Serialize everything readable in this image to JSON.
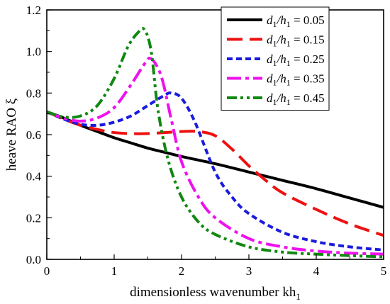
{
  "chart_data": {
    "type": "line",
    "xlabel": "dimensionless wavenumber kh",
    "xlabel_sub": "1",
    "ylabel": "heave RAO ξ",
    "xlim": [
      0,
      5
    ],
    "ylim": [
      0,
      1.2
    ],
    "xticks": [
      "0",
      "1",
      "2",
      "3",
      "4",
      "5"
    ],
    "yticks": [
      "0.0",
      "0.2",
      "0.4",
      "0.6",
      "0.8",
      "1.0",
      "1.2"
    ],
    "grid": false,
    "legend_position": "top-right",
    "series": [
      {
        "legend_ratio": "d",
        "legend_value": "= 0.05",
        "color": "#000000",
        "dash": "solid",
        "x": [
          0,
          0.25,
          0.5,
          0.75,
          1.0,
          1.25,
          1.5,
          1.75,
          2.0,
          2.5,
          3.0,
          3.5,
          4.0,
          4.5,
          5.0
        ],
        "y": [
          0.71,
          0.68,
          0.645,
          0.615,
          0.585,
          0.56,
          0.535,
          0.515,
          0.495,
          0.46,
          0.42,
          0.38,
          0.34,
          0.295,
          0.25
        ]
      },
      {
        "legend_ratio": "d",
        "legend_value": "= 0.15",
        "color": "#ee1111",
        "dash": "long-dash",
        "x": [
          0,
          0.25,
          0.5,
          0.75,
          1.0,
          1.25,
          1.5,
          1.75,
          2.0,
          2.25,
          2.5,
          2.75,
          3.0,
          3.25,
          3.5,
          4.0,
          4.5,
          5.0
        ],
        "y": [
          0.71,
          0.675,
          0.645,
          0.625,
          0.61,
          0.605,
          0.605,
          0.61,
          0.615,
          0.615,
          0.595,
          0.53,
          0.45,
          0.38,
          0.32,
          0.24,
          0.17,
          0.115
        ]
      },
      {
        "legend_ratio": "d",
        "legend_value": "= 0.25",
        "color": "#1b1bdd",
        "dash": "short-dash",
        "x": [
          0,
          0.25,
          0.5,
          0.75,
          1.0,
          1.25,
          1.5,
          1.75,
          1.85,
          2.0,
          2.2,
          2.5,
          2.75,
          3.0,
          3.5,
          4.0,
          4.5,
          5.0
        ],
        "y": [
          0.71,
          0.675,
          0.65,
          0.645,
          0.66,
          0.69,
          0.74,
          0.79,
          0.8,
          0.775,
          0.66,
          0.42,
          0.3,
          0.22,
          0.13,
          0.085,
          0.06,
          0.045
        ]
      },
      {
        "legend_ratio": "d",
        "legend_value": "= 0.35",
        "color": "#ee11ee",
        "dash": "dash-dot",
        "x": [
          0,
          0.25,
          0.5,
          0.75,
          1.0,
          1.25,
          1.45,
          1.55,
          1.7,
          1.85,
          2.0,
          2.25,
          2.5,
          3.0,
          3.5,
          4.0,
          4.5,
          5.0
        ],
        "y": [
          0.71,
          0.68,
          0.665,
          0.68,
          0.73,
          0.84,
          0.94,
          0.965,
          0.88,
          0.67,
          0.47,
          0.3,
          0.2,
          0.1,
          0.06,
          0.04,
          0.03,
          0.025
        ]
      },
      {
        "legend_ratio": "d",
        "legend_value": "= 0.45",
        "color": "#118811",
        "dash": "dash-dot-dot",
        "x": [
          0,
          0.25,
          0.5,
          0.75,
          1.0,
          1.2,
          1.35,
          1.45,
          1.55,
          1.65,
          1.8,
          2.0,
          2.25,
          2.5,
          3.0,
          3.5,
          4.0,
          4.5,
          5.0
        ],
        "y": [
          0.71,
          0.685,
          0.69,
          0.74,
          0.87,
          1.02,
          1.09,
          1.105,
          1.0,
          0.72,
          0.48,
          0.3,
          0.18,
          0.12,
          0.06,
          0.035,
          0.025,
          0.018,
          0.012
        ]
      }
    ]
  }
}
